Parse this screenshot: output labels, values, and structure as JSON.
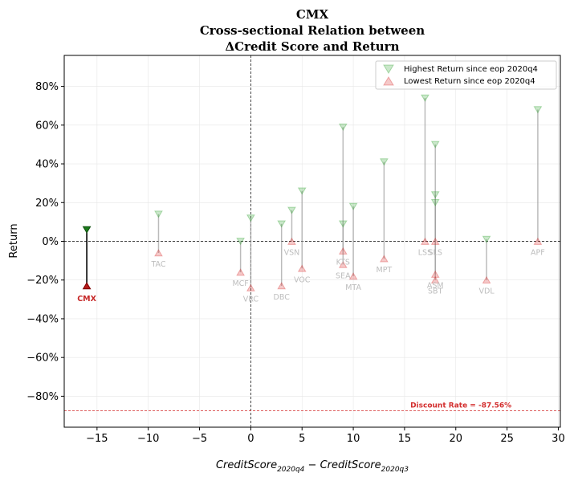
{
  "chart_data": {
    "type": "scatter",
    "title_lines": [
      "CMX",
      "Cross-sectional Relation between",
      "ΔCredit Score and Return"
    ],
    "xlabel_main": "CreditScore",
    "xlabel_sub1": "2020q4",
    "xlabel_minus": " − ",
    "xlabel_sub2": "2020q3",
    "ylabel": "Return",
    "xlim": [
      -18.2,
      30.2
    ],
    "ylim": [
      -0.96,
      0.96
    ],
    "xticks": [
      -15,
      -10,
      -5,
      0,
      5,
      10,
      15,
      20,
      25,
      30
    ],
    "xtick_labels": [
      "−15",
      "−10",
      "−5",
      "0",
      "5",
      "10",
      "15",
      "20",
      "25",
      "30"
    ],
    "yticks": [
      -0.8,
      -0.6,
      -0.4,
      -0.2,
      0,
      0.2,
      0.4,
      0.6,
      0.8
    ],
    "ytick_labels": [
      "−80%",
      "−60%",
      "−40%",
      "−20%",
      "0%",
      "20%",
      "40%",
      "60%",
      "80%"
    ],
    "grid": true,
    "legend": {
      "position": "top-right",
      "entries": [
        {
          "label": "Highest Return since eop 2020q4",
          "color": "#2ca02c",
          "marker": "triangle-down"
        },
        {
          "label": "Lowest Return since eop 2020q4",
          "color": "#d62728",
          "marker": "triangle-up"
        }
      ]
    },
    "discount_rate": {
      "value": -0.8756,
      "label": "Discount Rate = -87.56%",
      "color": "#d32f2f"
    },
    "focus": {
      "label": "CMX",
      "x": -16,
      "high": 0.06,
      "low": -0.23
    },
    "points": [
      {
        "label": "TAC",
        "x": -9,
        "high": 0.14,
        "low": -0.06
      },
      {
        "label": "MCF",
        "x": -1,
        "high": 0.0,
        "low": -0.16
      },
      {
        "label": "VRC",
        "x": 0,
        "high": 0.12,
        "low": -0.24
      },
      {
        "label": "DBC",
        "x": 3,
        "high": 0.09,
        "low": -0.23
      },
      {
        "label": "VSN",
        "x": 4,
        "high": 0.16,
        "low": 0.0
      },
      {
        "label": "VOC",
        "x": 5,
        "high": 0.26,
        "low": -0.14
      },
      {
        "label": "KTS",
        "x": 9,
        "high": 0.59,
        "low": -0.05
      },
      {
        "label": "SEA",
        "x": 9,
        "high": 0.09,
        "low": -0.12
      },
      {
        "label": "MTA",
        "x": 10,
        "high": 0.18,
        "low": -0.18
      },
      {
        "label": "MPT",
        "x": 13,
        "high": 0.41,
        "low": -0.09
      },
      {
        "label": "LSS",
        "x": 17,
        "high": 0.74,
        "low": 0.0
      },
      {
        "label": "SLS",
        "x": 18,
        "high": 0.5,
        "low": 0.0
      },
      {
        "label": "ASM",
        "x": 18,
        "high": 0.24,
        "low": -0.17
      },
      {
        "label": "SBT",
        "x": 18,
        "high": 0.2,
        "low": -0.2
      },
      {
        "label": "VDL",
        "x": 23,
        "high": 0.01,
        "low": -0.2
      },
      {
        "label": "APF",
        "x": 28,
        "high": 0.68,
        "low": 0.0
      }
    ]
  }
}
